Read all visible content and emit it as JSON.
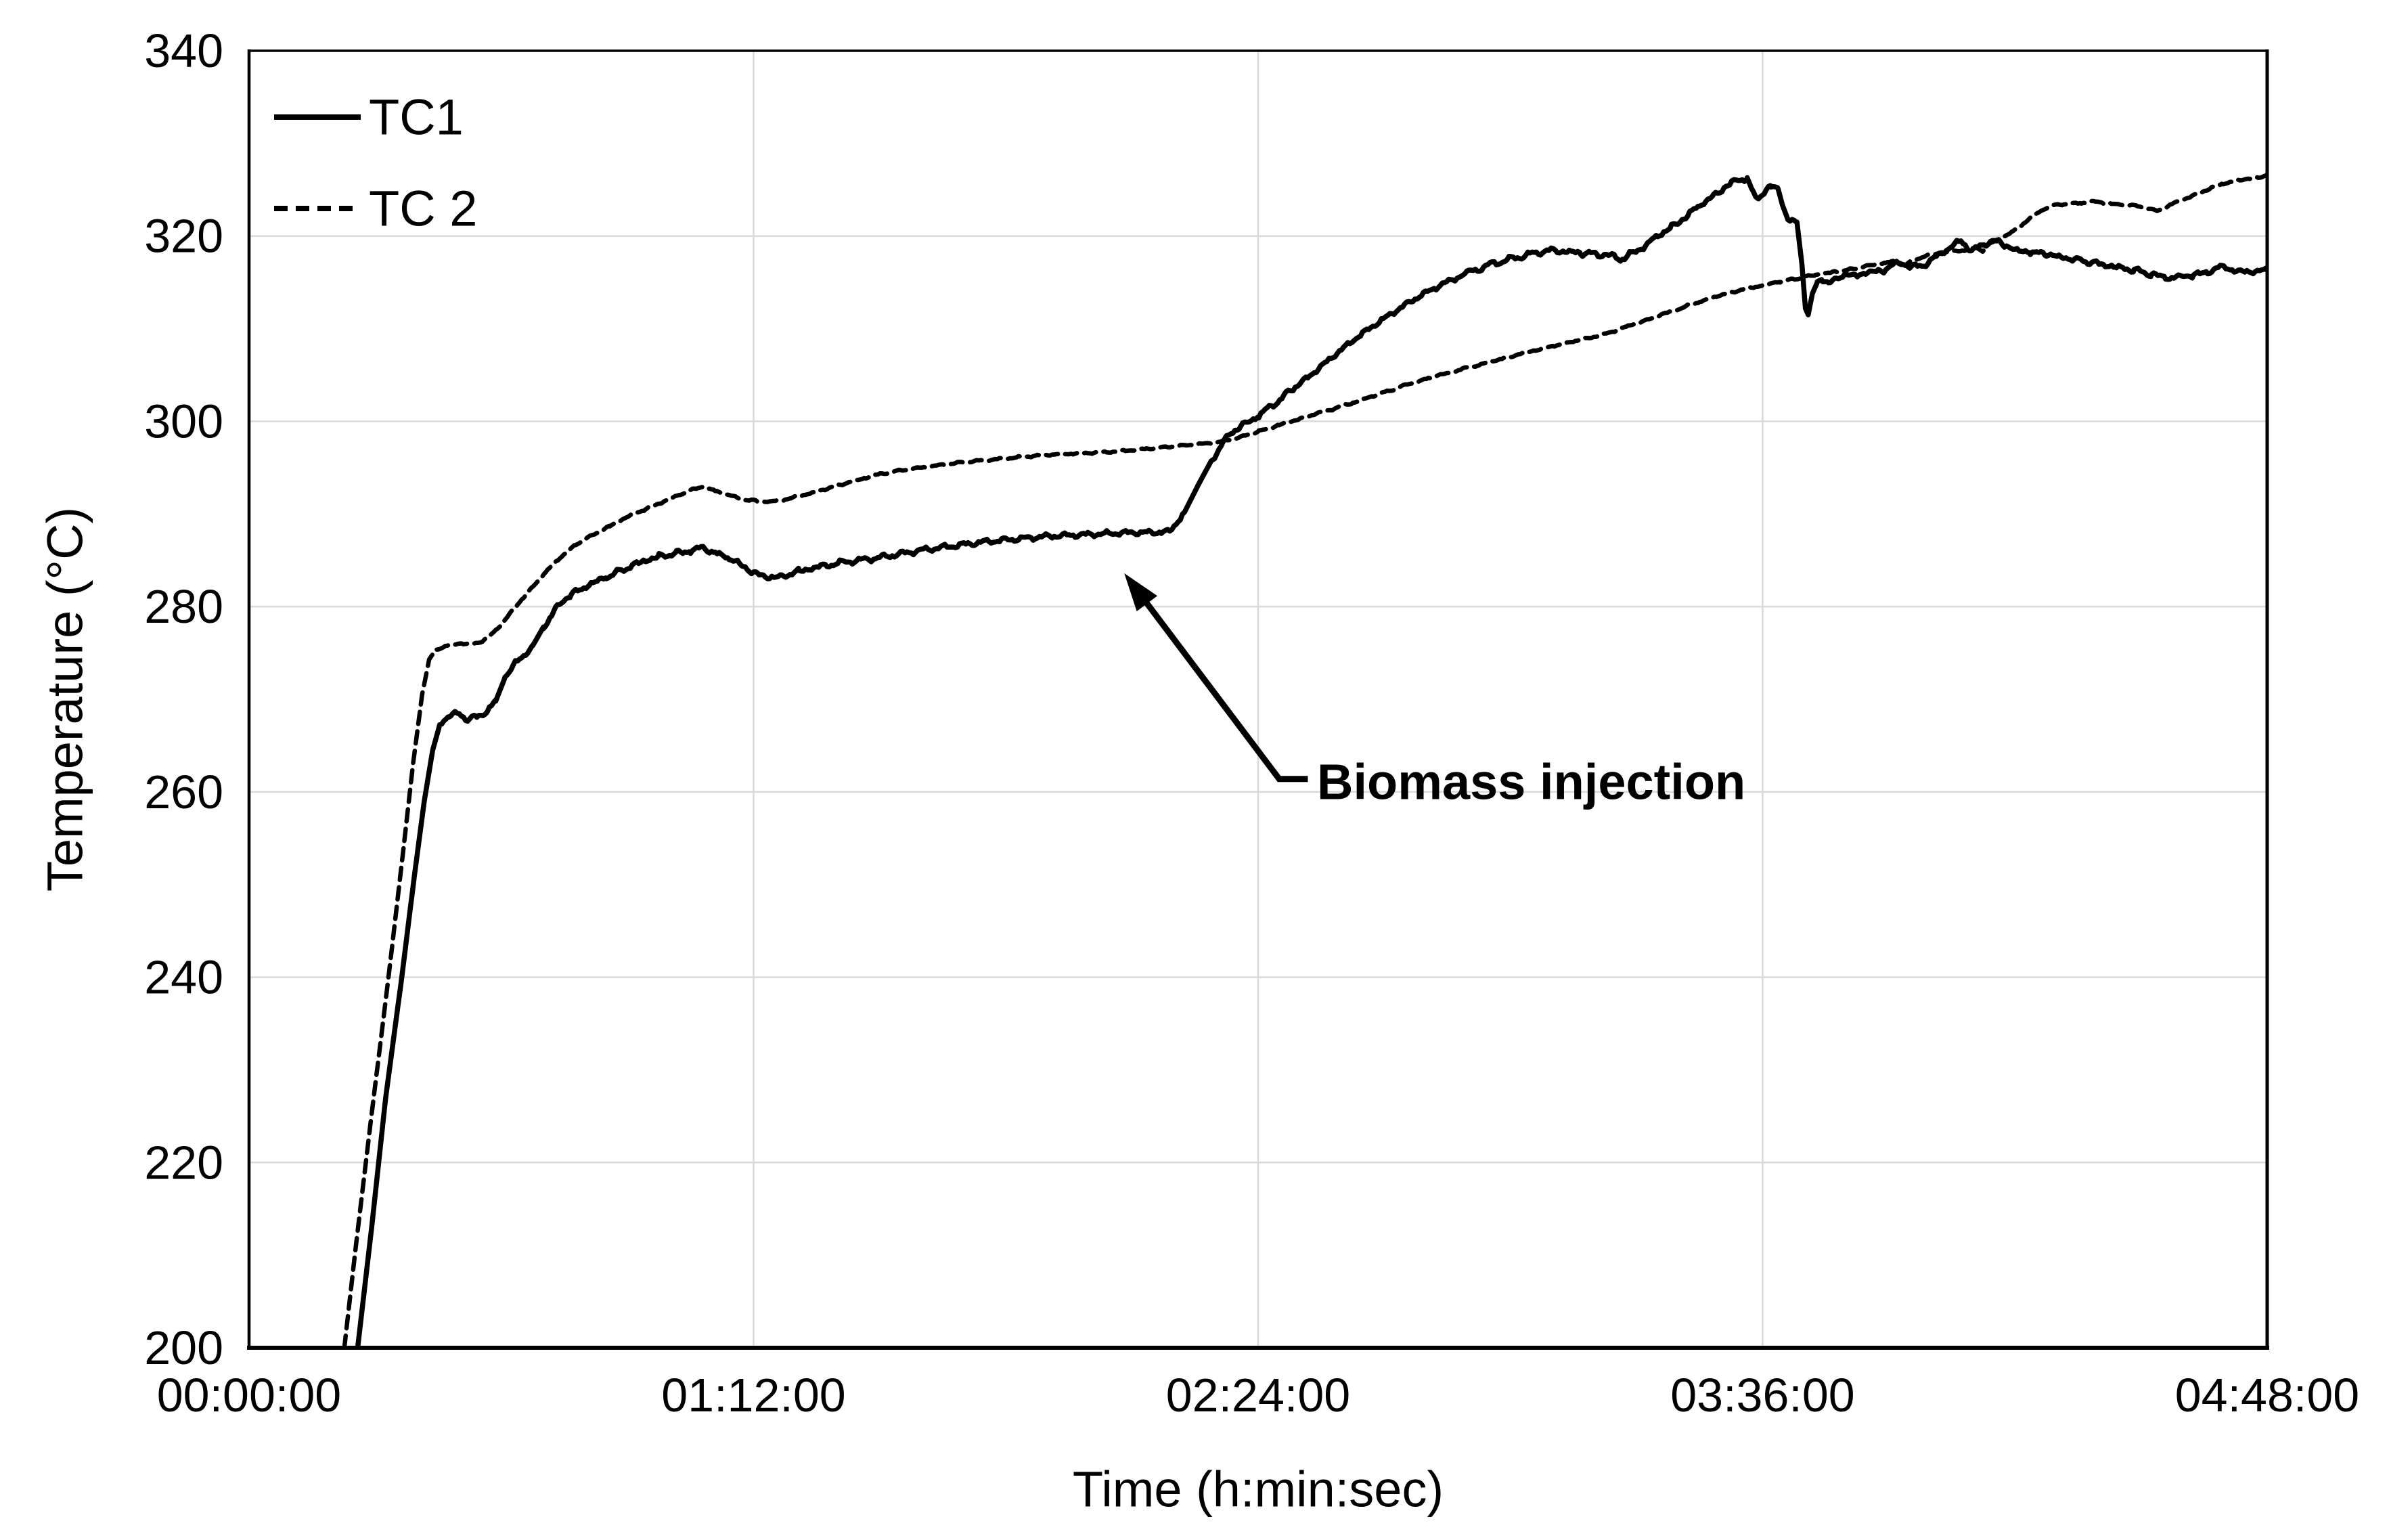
{
  "figure": {
    "background_color": "#ffffff",
    "axis_color": "#000000",
    "grid_color": "#d9d9d9"
  },
  "chart_data": {
    "type": "line",
    "title": "",
    "xlabel": "Time (h:min:sec)",
    "ylabel": "Temperature (°C)",
    "x_unit_note": "x values below are minutes since 00:00:00",
    "xlim": [
      0,
      288
    ],
    "ylim": [
      200,
      340
    ],
    "x_ticks": [
      0,
      72,
      144,
      216,
      288
    ],
    "x_tick_labels": [
      "00:00:00",
      "01:12:00",
      "02:24:00",
      "03:36:00",
      "04:48:00"
    ],
    "y_ticks": [
      200,
      220,
      240,
      260,
      280,
      300,
      320,
      340
    ],
    "y_tick_labels": [
      "200",
      "220",
      "240",
      "260",
      "280",
      "300",
      "320",
      "340"
    ],
    "grid": true,
    "legend_position": "top-left-inside",
    "annotation": {
      "text": "Biomass injection",
      "points_to": "kink of TC1 curve where steep temperature rise starts (~02:11:00, ~288 °C)",
      "arrow_path": [
        [
          151.1,
          261.4
        ],
        [
          147.0,
          261.4
        ],
        [
          124.9,
          283.6
        ]
      ]
    },
    "series": [
      {
        "name": "TC1",
        "style": "solid",
        "color": "#000000",
        "jitter": 0.3,
        "seed": 0.7,
        "points": [
          [
            15.5,
            200
          ],
          [
            17.5,
            213
          ],
          [
            19.5,
            227
          ],
          [
            21.8,
            240
          ],
          [
            23.6,
            251
          ],
          [
            25,
            259
          ],
          [
            26.2,
            264.5
          ],
          [
            27.2,
            267.2
          ],
          [
            28.5,
            268.2
          ],
          [
            30,
            268.4
          ],
          [
            31.2,
            267.9
          ],
          [
            32.5,
            268.1
          ],
          [
            34,
            268.7
          ],
          [
            35.2,
            269.8
          ],
          [
            36.5,
            272.3
          ],
          [
            38,
            274
          ],
          [
            39.2,
            274.6
          ],
          [
            40.5,
            275.8
          ],
          [
            42,
            277.8
          ],
          [
            44,
            280
          ],
          [
            46,
            281.3
          ],
          [
            48.5,
            282.4
          ],
          [
            51,
            283.2
          ],
          [
            53.5,
            284
          ],
          [
            56,
            284.8
          ],
          [
            58.5,
            285.4
          ],
          [
            61,
            285.8
          ],
          [
            63,
            286.1
          ],
          [
            64.8,
            286.3
          ],
          [
            66.5,
            285.9
          ],
          [
            68.5,
            285.2
          ],
          [
            70.5,
            284.3
          ],
          [
            72.5,
            283.6
          ],
          [
            74,
            283.1
          ],
          [
            76,
            283.3
          ],
          [
            78.5,
            283.8
          ],
          [
            81,
            284.2
          ],
          [
            84,
            284.7
          ],
          [
            87,
            285
          ],
          [
            90,
            285.3
          ],
          [
            93,
            285.7
          ],
          [
            96,
            286.1
          ],
          [
            99,
            286.4
          ],
          [
            102,
            286.7
          ],
          [
            105,
            287
          ],
          [
            108,
            287.2
          ],
          [
            111,
            287.4
          ],
          [
            114,
            287.6
          ],
          [
            117,
            287.7
          ],
          [
            120,
            287.8
          ],
          [
            123,
            287.9
          ],
          [
            126,
            288
          ],
          [
            129,
            288
          ],
          [
            131.4,
            288.1
          ],
          [
            133.5,
            290.2
          ],
          [
            135.5,
            293.2
          ],
          [
            137.5,
            296
          ],
          [
            139.5,
            298.2
          ],
          [
            141.5,
            299.5
          ],
          [
            144.1,
            300.6
          ],
          [
            146.5,
            302
          ],
          [
            149,
            303.5
          ],
          [
            152,
            305.3
          ],
          [
            155,
            307.2
          ],
          [
            158,
            309
          ],
          [
            161,
            310.6
          ],
          [
            164,
            312.1
          ],
          [
            167,
            313.5
          ],
          [
            170,
            314.7
          ],
          [
            173.5,
            315.9
          ],
          [
            177.4,
            317
          ],
          [
            181,
            317.7
          ],
          [
            184.9,
            318.4
          ],
          [
            187.5,
            318.4
          ],
          [
            190,
            318.2
          ],
          [
            192.5,
            318
          ],
          [
            194.5,
            317.8
          ],
          [
            195.7,
            317.5
          ],
          [
            197,
            318
          ],
          [
            199,
            318.9
          ],
          [
            201,
            319.9
          ],
          [
            203,
            321
          ],
          [
            205,
            322.1
          ],
          [
            207,
            323.2
          ],
          [
            209,
            324.4
          ],
          [
            211,
            325.5
          ],
          [
            212.5,
            326
          ],
          [
            213.8,
            326.3
          ],
          [
            214.7,
            324.6
          ],
          [
            215.4,
            323.9
          ],
          [
            216.2,
            324.8
          ],
          [
            217.2,
            325.4
          ],
          [
            218.2,
            325.1
          ],
          [
            218.8,
            323.4
          ],
          [
            219.6,
            321.8
          ],
          [
            220.9,
            321.5
          ],
          [
            221.6,
            317
          ],
          [
            222.1,
            312.2
          ],
          [
            222.5,
            311.5
          ],
          [
            223.1,
            313.8
          ],
          [
            223.8,
            315
          ],
          [
            224.6,
            315.4
          ],
          [
            225.4,
            315
          ],
          [
            226.5,
            315.3
          ],
          [
            228,
            315.9
          ],
          [
            229.5,
            315.7
          ],
          [
            231,
            316.1
          ],
          [
            233,
            316.3
          ],
          [
            235.5,
            317.1
          ],
          [
            237.2,
            316.6
          ],
          [
            239,
            316.9
          ],
          [
            241,
            317.8
          ],
          [
            242.8,
            318.9
          ],
          [
            244.3,
            319.4
          ],
          [
            245.8,
            318.5
          ],
          [
            247.3,
            318.9
          ],
          [
            248.8,
            319.6
          ],
          [
            250.2,
            319.1
          ],
          [
            252,
            318.5
          ],
          [
            254.2,
            318.3
          ],
          [
            256.5,
            318
          ],
          [
            259,
            317.7
          ],
          [
            261.5,
            317.4
          ],
          [
            264,
            317
          ],
          [
            266.5,
            316.6
          ],
          [
            269,
            316.3
          ],
          [
            271.5,
            315.9
          ],
          [
            273.5,
            315.6
          ],
          [
            275.5,
            315.5
          ],
          [
            277.5,
            315.8
          ],
          [
            279.5,
            316.2
          ],
          [
            281.5,
            316.6
          ],
          [
            283,
            316.4
          ],
          [
            284.5,
            316.1
          ],
          [
            286,
            316.2
          ],
          [
            288,
            316.3
          ]
        ]
      },
      {
        "name": "TC 2",
        "style": "dashed",
        "color": "#000000",
        "jitter": 0.11,
        "seed": 2.3,
        "points": [
          [
            13.6,
            200
          ],
          [
            15.4,
            212
          ],
          [
            17.3,
            224
          ],
          [
            19.9,
            240
          ],
          [
            21.9,
            253
          ],
          [
            23.4,
            263
          ],
          [
            24.7,
            270.5
          ],
          [
            25.7,
            274.3
          ],
          [
            26.6,
            275.3
          ],
          [
            28,
            275.7
          ],
          [
            30,
            276.1
          ],
          [
            31.5,
            275.9
          ],
          [
            33,
            276.2
          ],
          [
            34.3,
            276.8
          ],
          [
            36,
            278.1
          ],
          [
            38.3,
            280.2
          ],
          [
            40.3,
            282
          ],
          [
            42.3,
            283.7
          ],
          [
            44.3,
            285.2
          ],
          [
            46.6,
            286.7
          ],
          [
            49,
            287.7
          ],
          [
            51.5,
            288.7
          ],
          [
            54,
            289.7
          ],
          [
            56.5,
            290.5
          ],
          [
            59,
            291.3
          ],
          [
            61.5,
            292.1
          ],
          [
            63.5,
            292.7
          ],
          [
            64.8,
            292.9
          ],
          [
            66.5,
            292.5
          ],
          [
            68.5,
            292
          ],
          [
            70.5,
            291.6
          ],
          [
            72.5,
            291.4
          ],
          [
            74.5,
            291.3
          ],
          [
            76.5,
            291.6
          ],
          [
            78.5,
            291.9
          ],
          [
            81,
            292.4
          ],
          [
            83.5,
            293
          ],
          [
            86,
            293.5
          ],
          [
            88,
            293.9
          ],
          [
            90,
            294.3
          ],
          [
            93,
            294.7
          ],
          [
            96,
            295
          ],
          [
            99,
            295.3
          ],
          [
            102,
            295.6
          ],
          [
            105,
            295.8
          ],
          [
            108,
            296
          ],
          [
            111,
            296.2
          ],
          [
            114,
            296.4
          ],
          [
            117,
            296.5
          ],
          [
            120,
            296.6
          ],
          [
            123,
            296.7
          ],
          [
            126,
            296.9
          ],
          [
            129,
            297.1
          ],
          [
            132,
            297.3
          ],
          [
            135,
            297.5
          ],
          [
            138,
            297.7
          ],
          [
            141,
            298.2
          ],
          [
            144.1,
            298.9
          ],
          [
            147,
            299.6
          ],
          [
            150.5,
            300.4
          ],
          [
            154,
            301.2
          ],
          [
            157.5,
            302
          ],
          [
            161.5,
            303
          ],
          [
            165,
            303.9
          ],
          [
            168.5,
            304.7
          ],
          [
            172,
            305.4
          ],
          [
            175.5,
            306.1
          ],
          [
            179,
            306.8
          ],
          [
            182.7,
            307.5
          ],
          [
            186,
            308.1
          ],
          [
            189.5,
            308.7
          ],
          [
            193.4,
            309.4
          ],
          [
            196.5,
            310.2
          ],
          [
            200,
            311.1
          ],
          [
            203.5,
            312
          ],
          [
            207,
            312.9
          ],
          [
            210.8,
            313.8
          ],
          [
            213.5,
            314.3
          ],
          [
            216,
            314.7
          ],
          [
            218.5,
            315.1
          ],
          [
            221,
            315.4
          ],
          [
            223.5,
            315.8
          ],
          [
            226,
            316.1
          ],
          [
            228.5,
            316.4
          ],
          [
            231,
            316.8
          ],
          [
            233.5,
            317.1
          ],
          [
            235.2,
            317.3
          ],
          [
            236.3,
            316.8
          ],
          [
            237.5,
            317.4
          ],
          [
            239,
            317.8
          ],
          [
            241,
            318.1
          ],
          [
            243,
            318.4
          ],
          [
            244.8,
            318.4
          ],
          [
            246.5,
            318.8
          ],
          [
            247.4,
            318.4
          ],
          [
            248.4,
            319.2
          ],
          [
            250,
            319.8
          ],
          [
            251.8,
            320.5
          ],
          [
            253.2,
            321.3
          ],
          [
            254.6,
            322.2
          ],
          [
            256,
            322.9
          ],
          [
            257.5,
            323.3
          ],
          [
            259.5,
            323.5
          ],
          [
            261.5,
            323.6
          ],
          [
            263.5,
            323.7
          ],
          [
            265.5,
            323.5
          ],
          [
            267.5,
            323.4
          ],
          [
            269.5,
            323.2
          ],
          [
            271,
            323
          ],
          [
            272.3,
            322.7
          ],
          [
            273.8,
            323.2
          ],
          [
            275.5,
            323.8
          ],
          [
            277.5,
            324.4
          ],
          [
            279.5,
            325
          ],
          [
            281.5,
            325.6
          ],
          [
            283.5,
            326
          ],
          [
            285.5,
            326.2
          ],
          [
            287,
            326.3
          ],
          [
            288,
            326.7
          ]
        ]
      }
    ]
  },
  "legend": {
    "items": [
      {
        "label": "TC1",
        "line_style": "solid"
      },
      {
        "label": "TC 2",
        "line_style": "dashed"
      }
    ]
  }
}
